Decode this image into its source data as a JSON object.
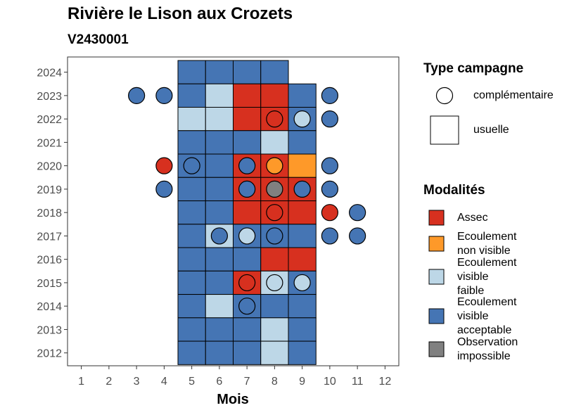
{
  "chart_data": {
    "type": "heatmap",
    "title": "Rivière le Lison aux Crozets",
    "subtitle": "V2430001",
    "xlabel": "Mois",
    "ylabel": "",
    "x_ticks": [
      1,
      2,
      3,
      4,
      5,
      6,
      7,
      8,
      9,
      10,
      11,
      12
    ],
    "y_ticks": [
      2012,
      2013,
      2014,
      2015,
      2016,
      2017,
      2018,
      2019,
      2020,
      2021,
      2022,
      2023,
      2024
    ],
    "xlim": [
      0.5,
      12.5
    ],
    "ylim": [
      2011.45,
      2024.65
    ],
    "grid": false,
    "legend_position": "right",
    "legend_shape": {
      "title": "Type campagne",
      "items": [
        {
          "key": "complementaire",
          "label": "complémentaire",
          "shape": "circle"
        },
        {
          "key": "usuelle",
          "label": "usuelle",
          "shape": "square"
        }
      ]
    },
    "legend_fill": {
      "title": "Modalités",
      "items": [
        {
          "key": "assec",
          "label": "Assec",
          "color": "#d7301f"
        },
        {
          "key": "enonvis",
          "label": "Ecoulement\nnon visible",
          "color": "#fe9929"
        },
        {
          "key": "faible",
          "label": "Ecoulement\nvisible\nfaible",
          "color": "#bdd7e7"
        },
        {
          "key": "accept",
          "label": "Ecoulement\nvisible\nacceptable",
          "color": "#4575b4"
        },
        {
          "key": "impossible",
          "label": "Observation\nimpossible",
          "color": "#808080"
        }
      ]
    },
    "usuelle": [
      {
        "year": 2024,
        "values": {
          "5": "accept",
          "6": "accept",
          "7": "accept",
          "8": "accept"
        }
      },
      {
        "year": 2023,
        "values": {
          "5": "accept",
          "6": "faible",
          "7": "assec",
          "8": "assec",
          "9": "accept"
        }
      },
      {
        "year": 2022,
        "values": {
          "5": "faible",
          "6": "faible",
          "7": "assec",
          "8": "assec",
          "9": "accept"
        }
      },
      {
        "year": 2021,
        "values": {
          "5": "accept",
          "6": "accept",
          "7": "accept",
          "8": "faible",
          "9": "accept"
        }
      },
      {
        "year": 2020,
        "values": {
          "5": "accept",
          "6": "accept",
          "7": "assec",
          "8": "assec",
          "9": "enonvis"
        }
      },
      {
        "year": 2019,
        "values": {
          "5": "accept",
          "6": "accept",
          "7": "assec",
          "8": "assec",
          "9": "assec"
        }
      },
      {
        "year": 2018,
        "values": {
          "5": "accept",
          "6": "accept",
          "7": "assec",
          "8": "assec",
          "9": "assec"
        }
      },
      {
        "year": 2017,
        "values": {
          "5": "accept",
          "6": "faible",
          "7": "accept",
          "8": "accept",
          "9": "accept"
        }
      },
      {
        "year": 2016,
        "values": {
          "5": "accept",
          "6": "accept",
          "7": "accept",
          "8": "assec",
          "9": "assec"
        }
      },
      {
        "year": 2015,
        "values": {
          "5": "accept",
          "6": "accept",
          "7": "assec",
          "8": "faible",
          "9": "accept"
        }
      },
      {
        "year": 2014,
        "values": {
          "5": "accept",
          "6": "faible",
          "7": "accept",
          "8": "accept",
          "9": "accept"
        }
      },
      {
        "year": 2013,
        "values": {
          "5": "accept",
          "6": "accept",
          "7": "accept",
          "8": "faible",
          "9": "accept"
        }
      },
      {
        "year": 2012,
        "values": {
          "5": "accept",
          "6": "accept",
          "7": "accept",
          "8": "faible",
          "9": "accept"
        }
      }
    ],
    "complementaire": [
      {
        "year": 2023,
        "month": 3,
        "value": "accept"
      },
      {
        "year": 2023,
        "month": 4,
        "value": "accept"
      },
      {
        "year": 2023,
        "month": 10,
        "value": "accept"
      },
      {
        "year": 2022,
        "month": 8,
        "value": "assec"
      },
      {
        "year": 2022,
        "month": 9,
        "value": "faible"
      },
      {
        "year": 2022,
        "month": 10,
        "value": "accept"
      },
      {
        "year": 2020,
        "month": 4,
        "value": "assec"
      },
      {
        "year": 2020,
        "month": 5,
        "value": "accept"
      },
      {
        "year": 2020,
        "month": 7,
        "value": "accept"
      },
      {
        "year": 2020,
        "month": 8,
        "value": "enonvis"
      },
      {
        "year": 2020,
        "month": 10,
        "value": "accept"
      },
      {
        "year": 2019,
        "month": 4,
        "value": "accept"
      },
      {
        "year": 2019,
        "month": 7,
        "value": "accept"
      },
      {
        "year": 2019,
        "month": 8,
        "value": "impossible"
      },
      {
        "year": 2019,
        "month": 9,
        "value": "accept"
      },
      {
        "year": 2019,
        "month": 10,
        "value": "accept"
      },
      {
        "year": 2018,
        "month": 8,
        "value": "assec"
      },
      {
        "year": 2018,
        "month": 10,
        "value": "assec"
      },
      {
        "year": 2018,
        "month": 11,
        "value": "accept"
      },
      {
        "year": 2017,
        "month": 6,
        "value": "accept"
      },
      {
        "year": 2017,
        "month": 7,
        "value": "faible"
      },
      {
        "year": 2017,
        "month": 8,
        "value": "accept"
      },
      {
        "year": 2017,
        "month": 10,
        "value": "accept"
      },
      {
        "year": 2017,
        "month": 11,
        "value": "accept"
      },
      {
        "year": 2015,
        "month": 7,
        "value": "assec"
      },
      {
        "year": 2015,
        "month": 8,
        "value": "faible"
      },
      {
        "year": 2015,
        "month": 9,
        "value": "faible"
      },
      {
        "year": 2014,
        "month": 7,
        "value": "accept"
      }
    ]
  }
}
